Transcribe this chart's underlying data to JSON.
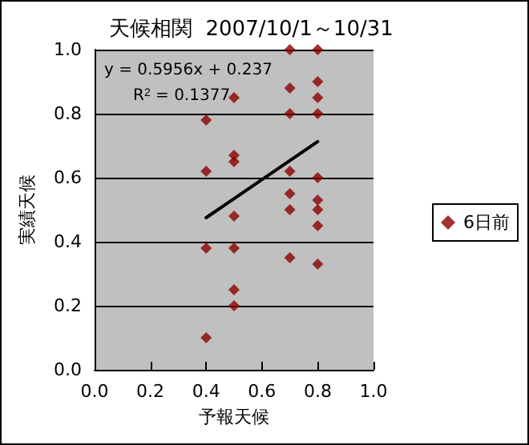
{
  "chart_data": {
    "type": "scatter",
    "title": "天候相関  2007/10/1～10/31",
    "xlabel": "予報天候",
    "ylabel": "実績天候",
    "annotations": [
      "y = 0.5956x + 0.237",
      "R$^{2}$ = 0.1377"
    ],
    "series": [
      {
        "name": "6日前",
        "color": "#8b0000",
        "marker": "diamond",
        "x": [
          0.4,
          0.4,
          0.4,
          0.4,
          0.5,
          0.5,
          0.5,
          0.5,
          0.5,
          0.5,
          0.5,
          0.7,
          0.7,
          0.7,
          0.7,
          0.7,
          0.7,
          0.7,
          0.8,
          0.8,
          0.8,
          0.8,
          0.8,
          0.8,
          0.8,
          0.8,
          0.8
        ],
        "values": [
          0.78,
          0.62,
          0.38,
          0.1,
          0.85,
          0.67,
          0.65,
          0.48,
          0.38,
          0.25,
          0.2,
          1.0,
          0.88,
          0.8,
          0.62,
          0.55,
          0.5,
          0.35,
          1.0,
          0.9,
          0.85,
          0.8,
          0.6,
          0.53,
          0.5,
          0.45,
          0.33
        ]
      },
      {
        "type": "line",
        "color": "#000000",
        "marker": "none",
        "x": [
          0.4,
          0.8
        ],
        "values": [
          0.475,
          0.713
        ]
      }
    ],
    "xlim": [
      0,
      1
    ],
    "xticks": [
      {
        "value": 0,
        "label": "0.0"
      },
      0.2,
      0.4,
      0.6,
      0.8,
      {
        "value": 1,
        "label": "1.0"
      }
    ],
    "ylim": [
      0,
      1
    ],
    "yticks": [
      {
        "value": 0,
        "label": "0.0"
      },
      0.2,
      0.4,
      0.6,
      0.8,
      {
        "value": 1,
        "label": "1.0"
      }
    ],
    "grid": "y",
    "legend": "right"
  }
}
